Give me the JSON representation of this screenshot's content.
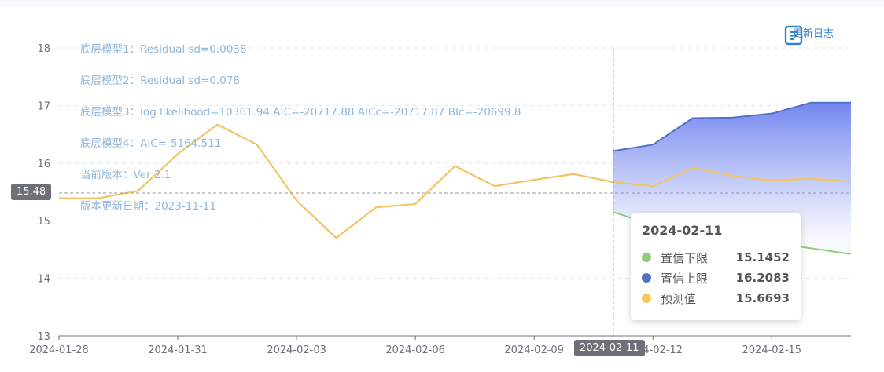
{
  "toolbar": {
    "changelog_label": "更新日志",
    "changelog_icon": "document-icon"
  },
  "annotations": [
    "底层模型1：Residual sd=0.0038",
    "底层模型2：Residual sd=0.078",
    "底层模型3：log likelihood=10361.94 AIC=-20717.88 AICc=-20717.87 BIc=-20699.8",
    "底层模型4：AIC=-5164.511",
    "当前版本：Ver 2.1",
    "版本更新日期：2023-11-11"
  ],
  "crosshair": {
    "y_value": 15.48,
    "y_label": "15.48",
    "x_label": "2024-02-11"
  },
  "tooltip": {
    "title": "2024-02-11",
    "rows": [
      {
        "name": "置信下限",
        "value": "15.1452",
        "color": "#91cc75"
      },
      {
        "name": "置信上限",
        "value": "16.2083",
        "color": "#5470c6"
      },
      {
        "name": "预测值",
        "value": "15.6693",
        "color": "#fac858"
      }
    ]
  },
  "chart_data": {
    "type": "line",
    "title": "",
    "xlabel": "",
    "ylabel": "",
    "ylim": [
      13,
      18
    ],
    "y_ticks": [
      13,
      14,
      15,
      16,
      17,
      18
    ],
    "grid": "horizontal-dashed",
    "x_tick_labels": [
      "2024-01-28",
      "2024-01-31",
      "2024-02-03",
      "2024-02-06",
      "2024-02-09",
      "2024-02-12",
      "2024-02-15"
    ],
    "x": [
      "2024-01-28",
      "2024-01-29",
      "2024-01-30",
      "2024-01-31",
      "2024-02-01",
      "2024-02-02",
      "2024-02-03",
      "2024-02-04",
      "2024-02-05",
      "2024-02-06",
      "2024-02-07",
      "2024-02-08",
      "2024-02-09",
      "2024-02-10",
      "2024-02-11",
      "2024-02-12",
      "2024-02-13",
      "2024-02-14",
      "2024-02-15",
      "2024-02-16",
      "2024-02-17"
    ],
    "series": [
      {
        "name": "预测值",
        "color": "#f2c463",
        "values": [
          15.39,
          15.39,
          15.52,
          16.16,
          16.67,
          16.32,
          15.35,
          14.7,
          15.23,
          15.29,
          15.95,
          15.6,
          15.71,
          15.81,
          15.67,
          15.6,
          15.92,
          15.78,
          15.7,
          15.73,
          15.68
        ]
      },
      {
        "name": "置信上限",
        "color": "#5470c6",
        "values": [
          null,
          null,
          null,
          null,
          null,
          null,
          null,
          null,
          null,
          null,
          null,
          null,
          null,
          null,
          16.21,
          16.32,
          16.78,
          16.79,
          16.86,
          17.05,
          17.05
        ]
      },
      {
        "name": "置信下限",
        "color": "#91cc75",
        "values": [
          null,
          null,
          null,
          null,
          null,
          null,
          null,
          null,
          null,
          null,
          null,
          null,
          null,
          null,
          15.15,
          14.92,
          15.09,
          14.82,
          14.62,
          14.52,
          14.42
        ]
      }
    ]
  }
}
